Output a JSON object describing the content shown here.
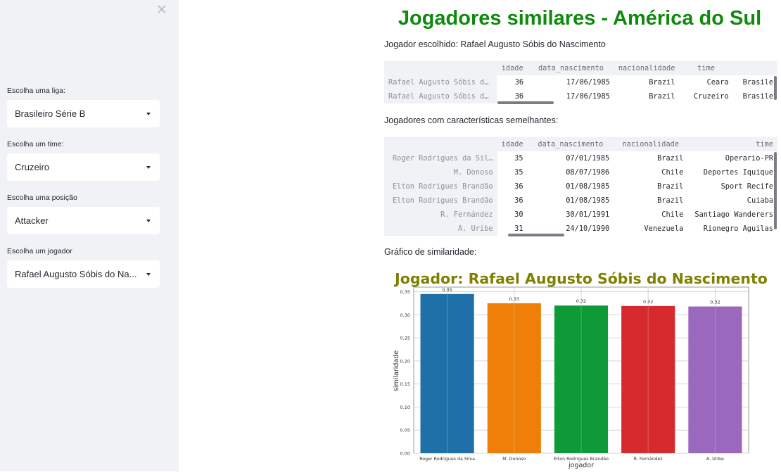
{
  "sidebar": {
    "close_symbol": "✕",
    "controls": [
      {
        "label": "Escolha uma liga:",
        "value": "Brasileiro Série B"
      },
      {
        "label": "Escolha um time:",
        "value": "Cruzeiro"
      },
      {
        "label": "Escolha uma posição",
        "value": "Attacker"
      },
      {
        "label": "Escolha um jogador",
        "value": "Rafael Augusto Sóbis do Nascimento"
      }
    ]
  },
  "main": {
    "title": "Jogadores similares - América do Sul",
    "chosen_text": "Jogador escolhido: Rafael Augusto Sóbis do Nascimento",
    "similar_text": "Jogadores com características semelhantes:",
    "chart_text": "Gráfico de similaridade:"
  },
  "table1": {
    "columns": [
      "idade",
      "data_nascimento",
      "nacionalidade",
      "time",
      ""
    ],
    "rows": [
      {
        "name": "Rafael Augusto Sóbis d…",
        "idade": "36",
        "data": "17/06/1985",
        "nac": "Brazil",
        "time": "Ceara",
        "extra": "Brasile"
      },
      {
        "name": "Rafael Augusto Sóbis d…",
        "idade": "36",
        "data": "17/06/1985",
        "nac": "Brazil",
        "time": "Cruzeiro",
        "extra": "Brasile"
      }
    ]
  },
  "table2": {
    "columns": [
      "idade",
      "data_nascimento",
      "nacionalidade",
      "time"
    ],
    "rows": [
      {
        "name": "Roger Rodrigues da Sil…",
        "idade": "35",
        "data": "07/01/1985",
        "nac": "Brazil",
        "time": "Operario-PR"
      },
      {
        "name": "M. Donoso",
        "idade": "35",
        "data": "08/07/1986",
        "nac": "Chile",
        "time": "Deportes Iquique"
      },
      {
        "name": "Elton Rodrigues Brandão",
        "idade": "36",
        "data": "01/08/1985",
        "nac": "Brazil",
        "time": "Sport Recife"
      },
      {
        "name": "Elton Rodrigues Brandão",
        "idade": "36",
        "data": "01/08/1985",
        "nac": "Brazil",
        "time": "Cuiaba"
      },
      {
        "name": "R. Fernández",
        "idade": "30",
        "data": "30/01/1991",
        "nac": "Chile",
        "time": "Santiago Wanderers"
      },
      {
        "name": "A. Uribe",
        "idade": "31",
        "data": "24/10/1990",
        "nac": "Venezuela",
        "time": "Rionegro Aguilas"
      }
    ]
  },
  "chart_data": {
    "type": "bar",
    "title": "Jogador: Rafael Augusto Sóbis do Nascimento",
    "xlabel": "jogador",
    "ylabel": "similaridade",
    "categories": [
      "Roger Rodrigues da Silva",
      "M. Donoso",
      "Elton Rodrigues Brandão",
      "R. Fernández",
      "A. Uribe"
    ],
    "values": [
      0.345,
      0.325,
      0.32,
      0.319,
      0.318
    ],
    "value_labels": [
      "0.35",
      "0.33",
      "0.32",
      "0.32",
      "0.32"
    ],
    "colors": [
      "#1f6fa8",
      "#f07f0a",
      "#0e9a38",
      "#d62a2e",
      "#9a68bd"
    ],
    "yticks": [
      "0.00",
      "0.05",
      "0.10",
      "0.15",
      "0.20",
      "0.25",
      "0.30",
      "0.35"
    ],
    "ylim": [
      0,
      0.36
    ],
    "grid": true,
    "title_color": "#808000"
  }
}
